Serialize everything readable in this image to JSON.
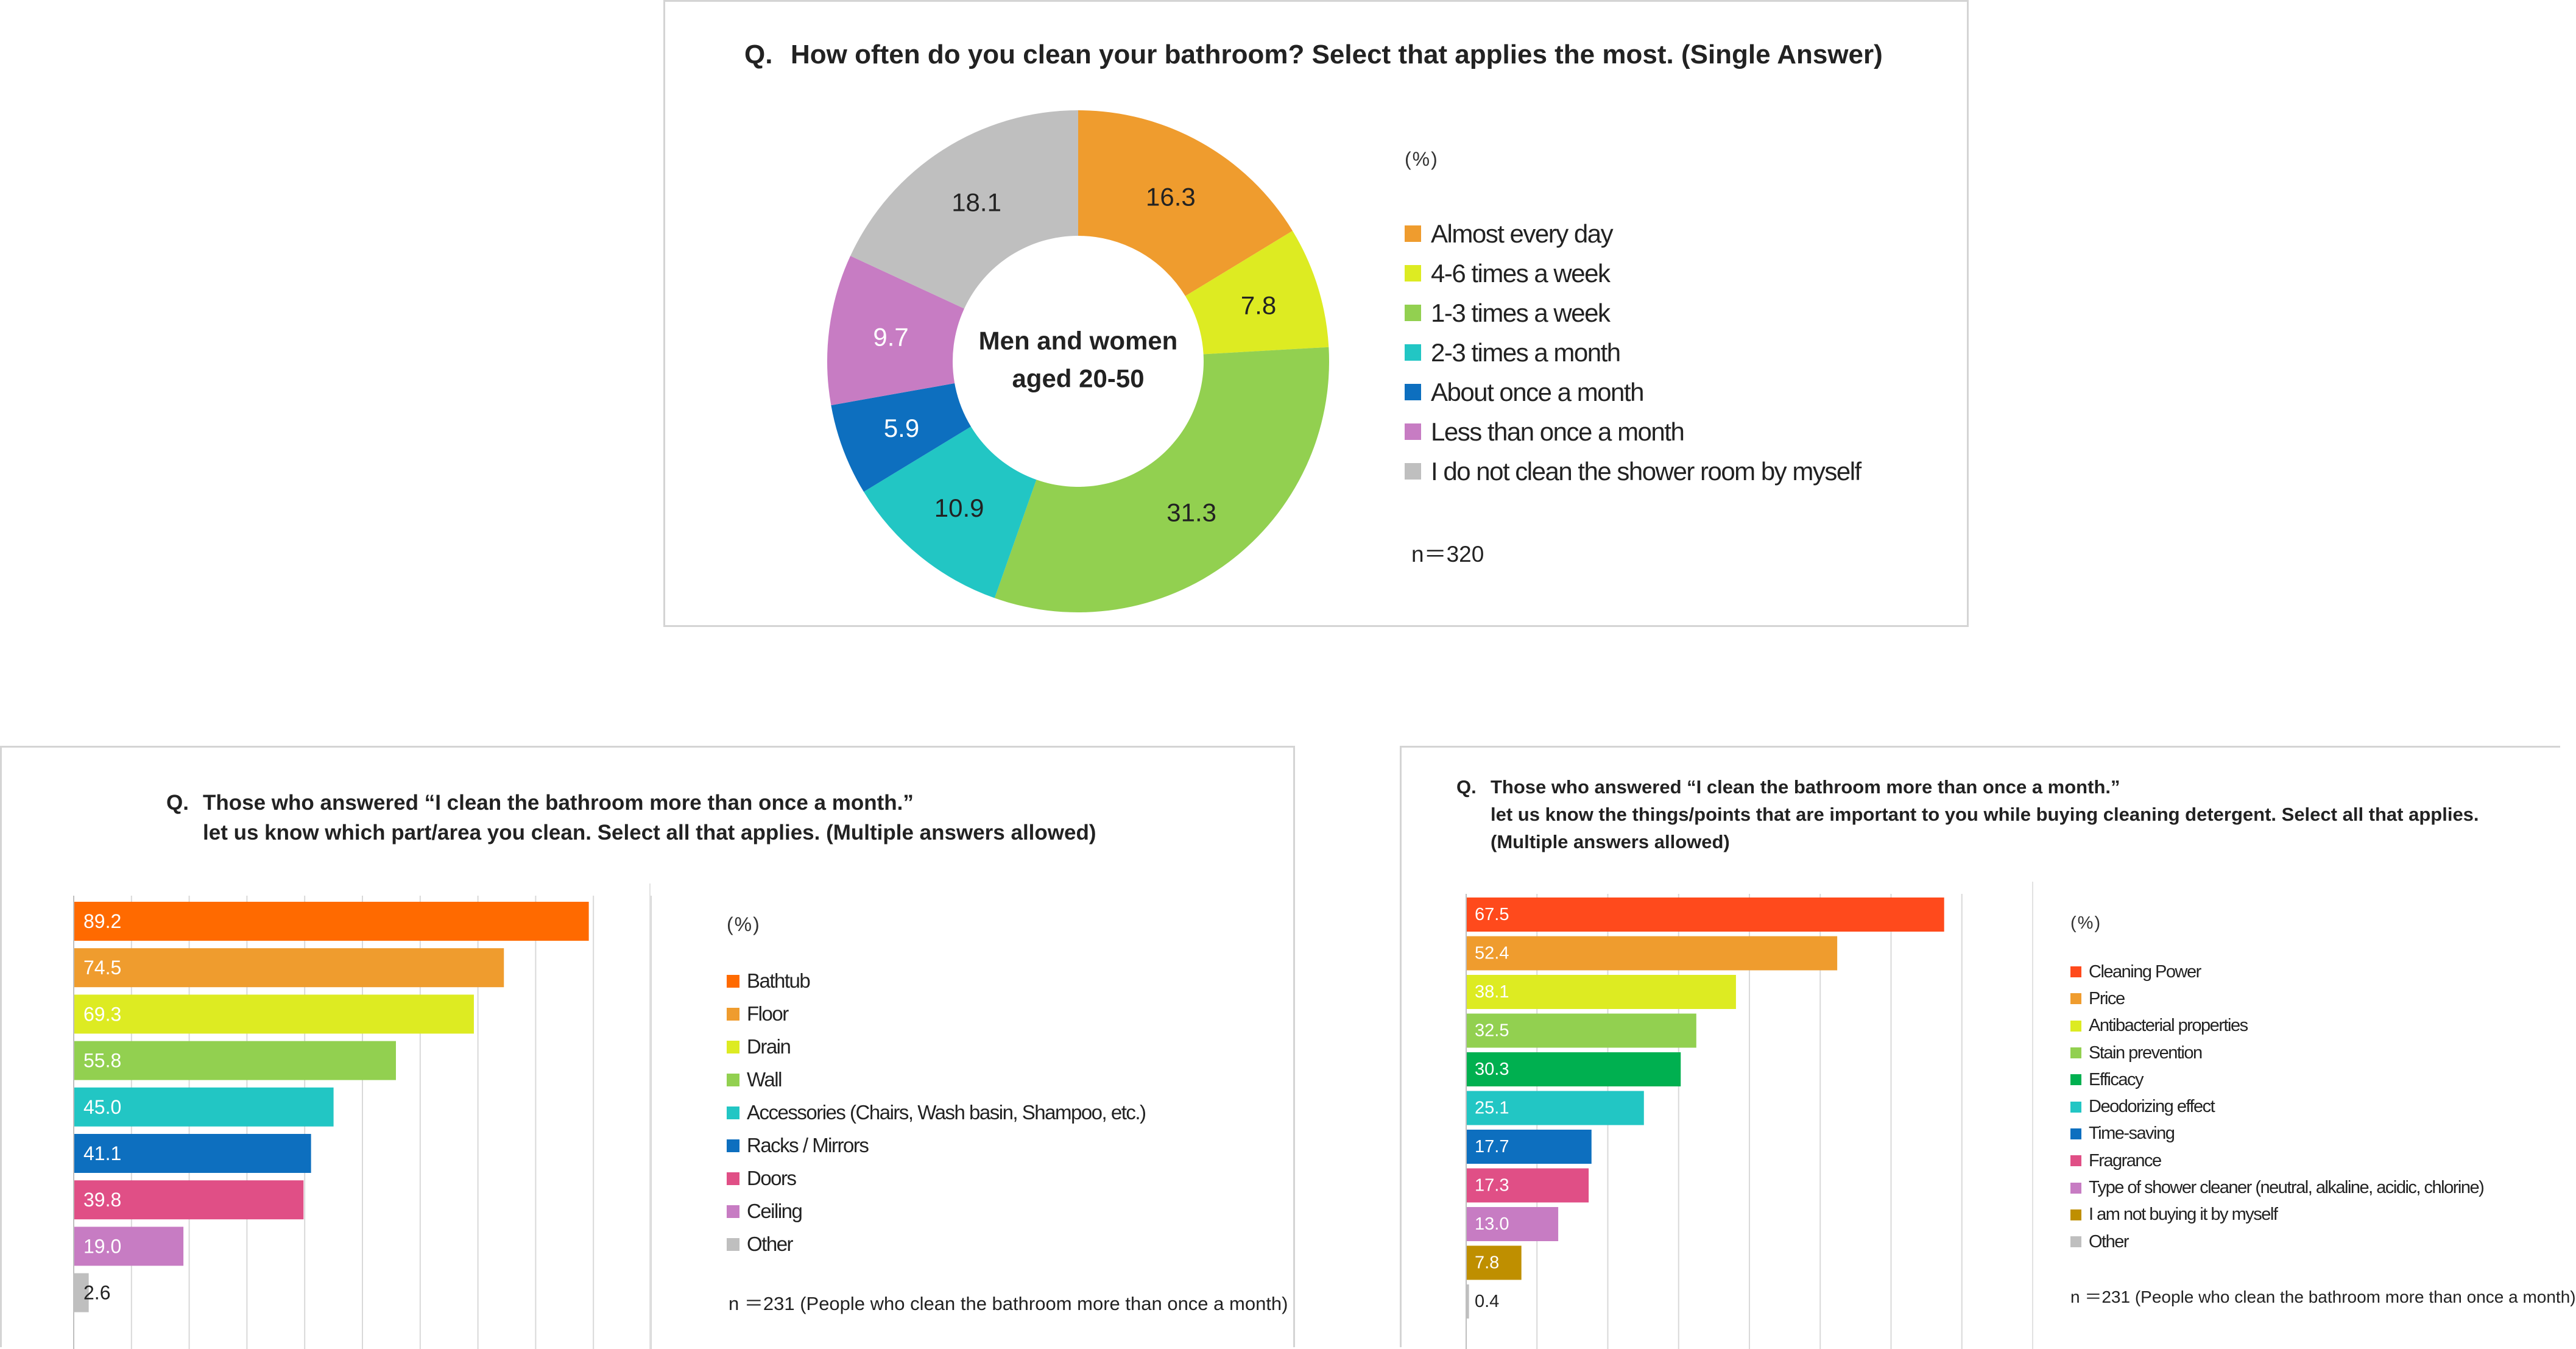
{
  "chart_data": [
    {
      "type": "pie",
      "title": "How often do you clean your bathroom? Select that applies the most.  (Single Answer)",
      "q_label": "Q.",
      "center_label": [
        "Men and women",
        "aged 20-50"
      ],
      "unit": "(%)",
      "n_note": "n＝320",
      "categories": [
        "Almost every day",
        "4-6 times a week",
        "1-3 times a week",
        "2-3 times a month",
        "About once a month",
        "Less than once a month",
        "I do not clean the shower room by myself"
      ],
      "values": [
        16.3,
        7.8,
        31.3,
        10.9,
        5.9,
        9.7,
        18.1
      ],
      "labels": [
        "16.3",
        "7.8",
        "31.3",
        "10.9",
        "5.9",
        "9.7",
        "18.1"
      ],
      "colors": [
        "#EF9C2E",
        "#DDEB22",
        "#92D050",
        "#22C6C4",
        "#0D6FBF",
        "#C77CC3",
        "#BFBFBF"
      ],
      "label_colors": [
        "#222222",
        "#222222",
        "#222222",
        "#222222",
        "#ffffff",
        "#ffffff",
        "#222222"
      ],
      "legend_position": "right"
    },
    {
      "type": "bar",
      "orientation": "horizontal",
      "q_label": "Q.",
      "title_lines": [
        "Those who answered “I clean the bathroom more than once a month.”",
        "let us know which part/area you clean. Select all that applies. (Multiple answers allowed)"
      ],
      "unit": "(%)",
      "n_note": "n ＝231 (People who clean the bathroom more than once a month)",
      "categories": [
        "Bathtub",
        "Floor",
        "Drain",
        "Wall",
        "Accessories (Chairs, Wash basin, Shampoo, etc.)",
        "Racks / Mirrors",
        "Doors",
        "Ceiling",
        "Other"
      ],
      "values": [
        89.2,
        74.5,
        69.3,
        55.8,
        45.0,
        41.1,
        39.8,
        19.0,
        2.6
      ],
      "labels": [
        "89.2",
        "74.5",
        "69.3",
        "55.8",
        "45.0",
        "41.1",
        "39.8",
        "19.0",
        "2.6"
      ],
      "colors": [
        "#FF6A00",
        "#EF9C2E",
        "#DDEB22",
        "#92D050",
        "#22C6C4",
        "#0D6FBF",
        "#E04F86",
        "#C77CC3",
        "#BFBFBF"
      ],
      "xlim": [
        0,
        100
      ],
      "grid": true,
      "legend_position": "right"
    },
    {
      "type": "bar",
      "orientation": "horizontal",
      "q_label": "Q.",
      "title_lines": [
        "Those who answered “I clean the bathroom more than once a month.”",
        "let us know the things/points that are important to you while buying cleaning detergent. Select all that applies.",
        "(Multiple answers allowed)"
      ],
      "unit": "(%)",
      "n_note": "n ＝231 (People who clean the bathroom more than once a month)",
      "categories": [
        "Cleaning Power",
        "Price",
        "Antibacterial properties",
        "Stain prevention",
        "Efficacy",
        "Deodorizing effect",
        "Time-saving",
        "Fragrance",
        "Type of shower cleaner (neutral, alkaline, acidic, chlorine)",
        "I am not buying it by myself",
        "Other"
      ],
      "values": [
        67.5,
        52.4,
        38.1,
        32.5,
        30.3,
        25.1,
        17.7,
        17.3,
        13.0,
        7.8,
        0.4
      ],
      "labels": [
        "67.5",
        "52.4",
        "38.1",
        "32.5",
        "30.3",
        "25.1",
        "17.7",
        "17.3",
        "13.0",
        "7.8",
        "0.4"
      ],
      "colors": [
        "#FF4A1C",
        "#EF9C2E",
        "#DDEB22",
        "#92D050",
        "#00B050",
        "#22C6C4",
        "#0D6FBF",
        "#E04F86",
        "#C77CC3",
        "#BF8F00",
        "#BFBFBF"
      ],
      "xlim": [
        0,
        80
      ],
      "grid": true,
      "legend_position": "right"
    }
  ]
}
